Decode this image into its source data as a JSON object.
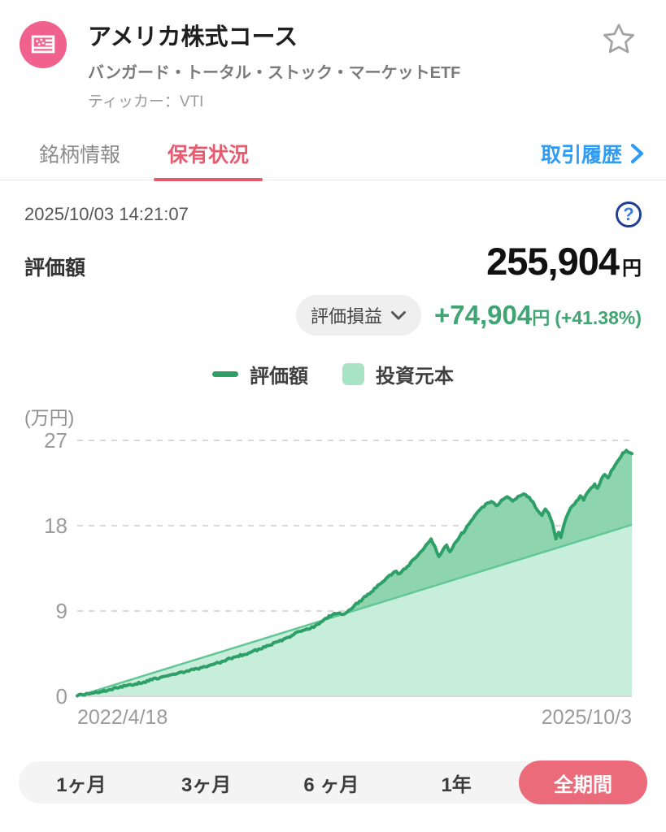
{
  "header": {
    "title": "アメリカ株式コース",
    "subtitle": "バンガード・トータル・ストック・マーケットETF",
    "ticker": "ティッカー：VTI"
  },
  "tabs": {
    "items": [
      {
        "label": "銘柄情報",
        "active": false
      },
      {
        "label": "保有状況",
        "active": true
      }
    ],
    "history_link": "取引履歴"
  },
  "holdings": {
    "timestamp": "2025/10/03 14:21:07",
    "help_glyph": "?",
    "valuation_label": "評価額",
    "valuation_value": "255,904",
    "valuation_unit": "円",
    "pl_selector_label": "評価損益",
    "pl_value": "+74,904",
    "pl_unit": "円",
    "pl_percent": "(+41.38%)"
  },
  "legend": {
    "line_label": "評価額",
    "area_label": "投資元本"
  },
  "chart_data": {
    "type": "area",
    "unit_label": "(万円)",
    "y_ticks": [
      0,
      9,
      18,
      27
    ],
    "ylim": [
      0,
      27
    ],
    "x_start_label": "2022/4/18",
    "x_end_label": "2025/10/3",
    "grid": "dashed-horizontal",
    "legend_position": "top-center",
    "series": [
      {
        "name": "評価額",
        "type": "line-area",
        "color": "#2f9f68",
        "fill": "#8ed5af",
        "end_value": 25.59,
        "points": [
          [
            0,
            0.05
          ],
          [
            0.01,
            0.15
          ],
          [
            0.02,
            0.25
          ],
          [
            0.03,
            0.35
          ],
          [
            0.045,
            0.5
          ],
          [
            0.06,
            0.7
          ],
          [
            0.075,
            0.9
          ],
          [
            0.09,
            1.15
          ],
          [
            0.105,
            1.3
          ],
          [
            0.12,
            1.5
          ],
          [
            0.135,
            1.75
          ],
          [
            0.15,
            2.0
          ],
          [
            0.165,
            2.2
          ],
          [
            0.18,
            2.4
          ],
          [
            0.195,
            2.6
          ],
          [
            0.21,
            2.8
          ],
          [
            0.225,
            3.05
          ],
          [
            0.24,
            3.3
          ],
          [
            0.255,
            3.55
          ],
          [
            0.27,
            3.9
          ],
          [
            0.285,
            4.15
          ],
          [
            0.3,
            4.4
          ],
          [
            0.315,
            4.7
          ],
          [
            0.33,
            5.0
          ],
          [
            0.345,
            5.35
          ],
          [
            0.36,
            5.75
          ],
          [
            0.375,
            6.1
          ],
          [
            0.39,
            6.5
          ],
          [
            0.4,
            6.85
          ],
          [
            0.41,
            7.0
          ],
          [
            0.42,
            7.15
          ],
          [
            0.43,
            7.5
          ],
          [
            0.445,
            8.1
          ],
          [
            0.46,
            8.6
          ],
          [
            0.47,
            8.75
          ],
          [
            0.48,
            8.65
          ],
          [
            0.49,
            9.1
          ],
          [
            0.5,
            9.6
          ],
          [
            0.515,
            10.3
          ],
          [
            0.53,
            11.0
          ],
          [
            0.545,
            11.8
          ],
          [
            0.56,
            12.6
          ],
          [
            0.572,
            13.15
          ],
          [
            0.582,
            12.95
          ],
          [
            0.595,
            13.7
          ],
          [
            0.61,
            14.6
          ],
          [
            0.625,
            15.6
          ],
          [
            0.638,
            16.6
          ],
          [
            0.645,
            15.8
          ],
          [
            0.652,
            14.75
          ],
          [
            0.66,
            15.5
          ],
          [
            0.666,
            15.95
          ],
          [
            0.672,
            15.25
          ],
          [
            0.68,
            16.1
          ],
          [
            0.69,
            16.9
          ],
          [
            0.7,
            17.6
          ],
          [
            0.71,
            18.5
          ],
          [
            0.72,
            19.3
          ],
          [
            0.73,
            19.95
          ],
          [
            0.74,
            20.4
          ],
          [
            0.75,
            20.45
          ],
          [
            0.756,
            20.1
          ],
          [
            0.765,
            20.7
          ],
          [
            0.775,
            21.05
          ],
          [
            0.785,
            20.6
          ],
          [
            0.795,
            21.1
          ],
          [
            0.805,
            21.35
          ],
          [
            0.815,
            21.0
          ],
          [
            0.822,
            20.5
          ],
          [
            0.83,
            19.6
          ],
          [
            0.838,
            19.1
          ],
          [
            0.844,
            19.75
          ],
          [
            0.85,
            19.3
          ],
          [
            0.857,
            18.2
          ],
          [
            0.863,
            16.6
          ],
          [
            0.868,
            17.3
          ],
          [
            0.872,
            16.75
          ],
          [
            0.878,
            18.2
          ],
          [
            0.885,
            19.3
          ],
          [
            0.893,
            20.1
          ],
          [
            0.9,
            20.6
          ],
          [
            0.907,
            21.15
          ],
          [
            0.913,
            20.7
          ],
          [
            0.92,
            21.5
          ],
          [
            0.927,
            22.0
          ],
          [
            0.933,
            22.4
          ],
          [
            0.938,
            21.95
          ],
          [
            0.945,
            22.9
          ],
          [
            0.951,
            23.4
          ],
          [
            0.957,
            23.05
          ],
          [
            0.963,
            23.8
          ],
          [
            0.97,
            24.4
          ],
          [
            0.977,
            25.0
          ],
          [
            0.984,
            25.7
          ],
          [
            0.99,
            25.95
          ],
          [
            0.995,
            25.7
          ],
          [
            1.0,
            25.6
          ]
        ]
      },
      {
        "name": "投資元本",
        "type": "line-area",
        "color": "#62c795",
        "fill": "#c6eeda",
        "end_value": 18.1,
        "points": [
          [
            0,
            0
          ],
          [
            1,
            18.1
          ]
        ]
      }
    ]
  },
  "ranges": {
    "items": [
      "1ヶ月",
      "3ヶ月",
      "6 ヶ月",
      "1年",
      "全期間"
    ],
    "active_index": 4
  },
  "colors": {
    "flag_pink": "#f0618e",
    "tab_red": "#e85b6e",
    "active_pill_pink": "#ec6b7a",
    "link_blue": "#2e9cf4",
    "gain_green": "#3fa573",
    "line_green": "#2f9f68",
    "value_fill_green": "#8ed5af",
    "principal_fill_green": "#c6eeda",
    "principal_line_green": "#62c795",
    "legend_square_green": "#a9e3c6",
    "help_ring_navy": "#1e3f94",
    "help_question_blue": "#3b7de0"
  }
}
